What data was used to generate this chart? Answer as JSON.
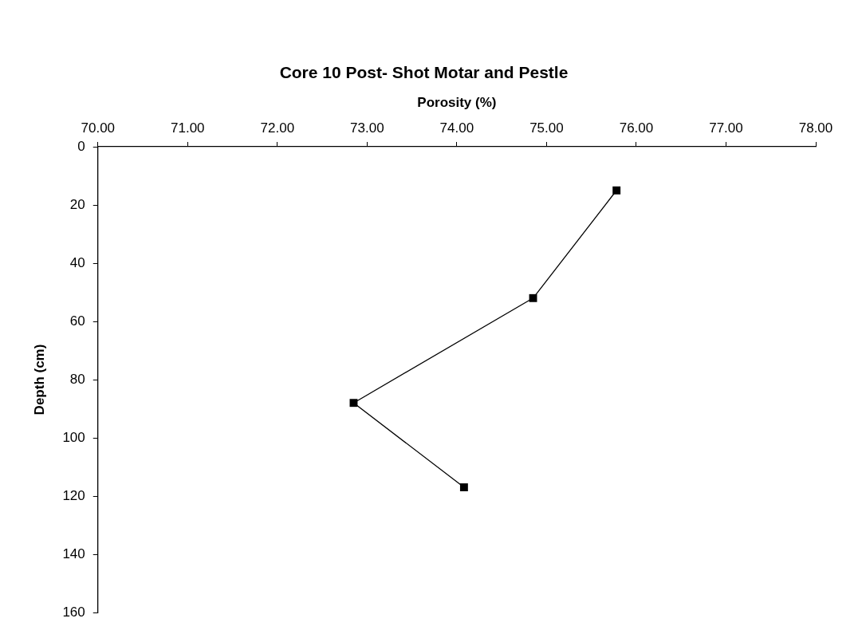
{
  "chart_data": {
    "type": "line",
    "title": "Core 10 Post- Shot Motar and Pestle",
    "xlabel": "Porosity (%)",
    "ylabel": "Depth (cm)",
    "x": [
      75.78,
      74.85,
      72.85,
      74.08
    ],
    "series": [
      {
        "color": "#000000",
        "values": [
          15,
          52,
          88,
          117
        ]
      }
    ],
    "xlim": [
      70,
      78
    ],
    "xticks": [
      {
        "value": 70,
        "label": "70.00"
      },
      {
        "value": 71,
        "label": "71.00"
      },
      {
        "value": 72,
        "label": "72.00"
      },
      {
        "value": 73,
        "label": "73.00"
      },
      {
        "value": 74,
        "label": "74.00"
      },
      {
        "value": 75,
        "label": "75.00"
      },
      {
        "value": 76,
        "label": "76.00"
      },
      {
        "value": 77,
        "label": "77.00"
      },
      {
        "value": 78,
        "label": "78.00"
      }
    ],
    "ylim": [
      160,
      0
    ],
    "yticks": [
      0,
      20,
      40,
      60,
      80,
      100,
      120,
      140,
      160
    ],
    "grid": false,
    "legend": false,
    "marker": "square",
    "line_style": "solid"
  }
}
